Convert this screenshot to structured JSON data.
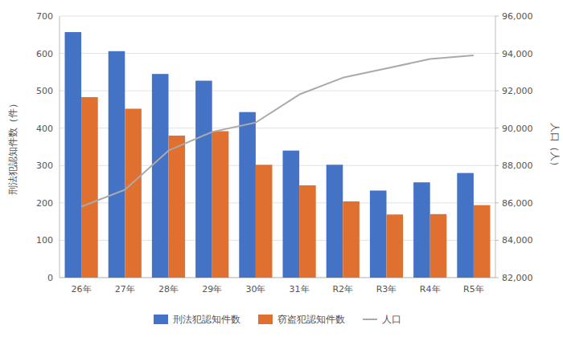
{
  "chart_data": {
    "type": "bar",
    "categories": [
      "26年",
      "27年",
      "28年",
      "29年",
      "30年",
      "31年",
      "R2年",
      "R3年",
      "R4年",
      "R5年"
    ],
    "series": [
      {
        "name": "刑法犯認知件数",
        "color": "#4472C4",
        "values": [
          657,
          606,
          545,
          527,
          443,
          340,
          302,
          233,
          255,
          280
        ]
      },
      {
        "name": "窃盗犯認知件数",
        "color": "#E07030",
        "values": [
          483,
          452,
          380,
          392,
          302,
          247,
          204,
          169,
          170,
          194
        ]
      },
      {
        "name": "人口",
        "type": "line",
        "axis": "y2",
        "color": "#AAAAAA",
        "values": [
          85800,
          86700,
          88800,
          89800,
          90300,
          91800,
          92700,
          93200,
          93700,
          93900
        ]
      }
    ],
    "ylabel": "刑法犯認知件数（件）",
    "y2label": "人口（人）",
    "ylim": [
      0,
      700
    ],
    "yticks": [
      0,
      100,
      200,
      300,
      400,
      500,
      600,
      700
    ],
    "y2lim": [
      82000,
      96000
    ],
    "y2ticks": [
      {
        "value": 82000,
        "label": "82,000"
      },
      {
        "value": 84000,
        "label": "84,000"
      },
      {
        "value": 86000,
        "label": "86,000"
      },
      {
        "value": 88000,
        "label": "88,000"
      },
      {
        "value": 90000,
        "label": "90,000"
      },
      {
        "value": 92000,
        "label": "92,000"
      },
      {
        "value": 94000,
        "label": "94,000"
      },
      {
        "value": 96000,
        "label": "96,000"
      }
    ],
    "grid": true,
    "legend": "bottom"
  }
}
